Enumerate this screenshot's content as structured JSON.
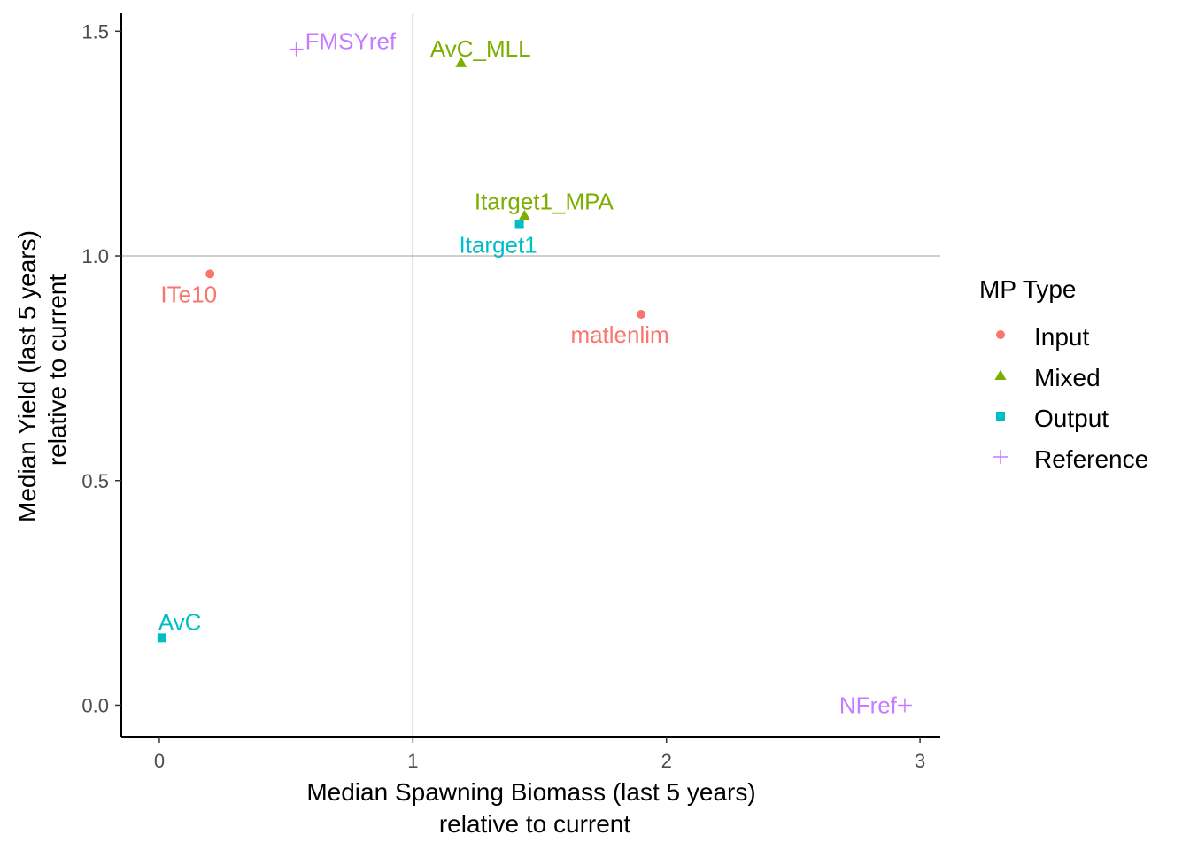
{
  "chart_data": {
    "type": "scatter",
    "title": "",
    "xlabel": [
      "Median Spawning Biomass (last 5 years)",
      "relative to current"
    ],
    "ylabel": [
      "Median Yield (last 5 years)",
      "relative to current"
    ],
    "xlim": [
      -0.15,
      3.08
    ],
    "ylim": [
      -0.07,
      1.54
    ],
    "x_ticks": [
      0,
      1,
      2,
      3
    ],
    "x_tick_labels": [
      "0",
      "1",
      "2",
      "3"
    ],
    "y_ticks": [
      0.0,
      0.5,
      1.0,
      1.5
    ],
    "y_tick_labels": [
      "0.0",
      "0.5",
      "1.0",
      "1.5"
    ],
    "reference_lines": {
      "x": 1,
      "y": 1,
      "color": "#bebebe"
    },
    "grid": false,
    "legend": {
      "title": "MP Type",
      "position": "right",
      "entries": [
        {
          "name": "Input",
          "color": "#F8766D",
          "shape": "circle"
        },
        {
          "name": "Mixed",
          "color": "#7CAE00",
          "shape": "triangle"
        },
        {
          "name": "Output",
          "color": "#00BFC4",
          "shape": "square"
        },
        {
          "name": "Reference",
          "color": "#C77CFF",
          "shape": "plus"
        }
      ]
    },
    "points": [
      {
        "label": "FMSYref",
        "type": "Reference",
        "x": 0.54,
        "y": 1.46
      },
      {
        "label": "AvC_MLL",
        "type": "Mixed",
        "x": 1.19,
        "y": 1.43
      },
      {
        "label": "Itarget1_MPA",
        "type": "Mixed",
        "x": 1.44,
        "y": 1.09
      },
      {
        "label": "Itarget1",
        "type": "Output",
        "x": 1.42,
        "y": 1.07
      },
      {
        "label": "ITe10",
        "type": "Input",
        "x": 0.2,
        "y": 0.96
      },
      {
        "label": "matlenlim",
        "type": "Input",
        "x": 1.9,
        "y": 0.87
      },
      {
        "label": "AvC",
        "type": "Output",
        "x": 0.01,
        "y": 0.15
      },
      {
        "label": "NFref",
        "type": "Reference",
        "x": 2.94,
        "y": 0.0
      }
    ]
  }
}
